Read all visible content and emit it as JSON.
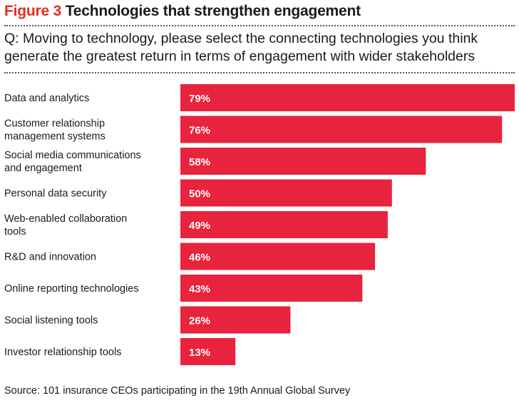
{
  "header": {
    "figure_label": "Figure 3",
    "title": "Technologies that strengthen engagement"
  },
  "question": {
    "line1": "Q: Moving to technology, please select the connecting technologies you think",
    "line2": "generate the greatest return in terms of engagement with wider stakeholders"
  },
  "source": "Source: 101 insurance CEOs participating in the 19th Annual Global Survey",
  "colors": {
    "bar": "#e8233d",
    "accent": "#e0301e",
    "text": "#1a1a1a"
  },
  "chart_data": {
    "type": "bar",
    "orientation": "horizontal",
    "categories": [
      [
        "Data and analytics"
      ],
      [
        "Customer relationship",
        "management systems"
      ],
      [
        "Social media communications",
        "and engagement"
      ],
      [
        "Personal data security"
      ],
      [
        "Web-enabled collaboration",
        "tools"
      ],
      [
        "R&D and innovation"
      ],
      [
        "Online reporting technologies"
      ],
      [
        "Social listening tools"
      ],
      [
        "Investor relationship tools"
      ]
    ],
    "values": [
      79,
      76,
      58,
      50,
      49,
      46,
      43,
      26,
      13
    ],
    "value_labels": [
      "79%",
      "76%",
      "58%",
      "50%",
      "49%",
      "46%",
      "43%",
      "26%",
      "13%"
    ],
    "xlim": [
      0,
      79
    ],
    "grid": false,
    "legend": "none"
  }
}
